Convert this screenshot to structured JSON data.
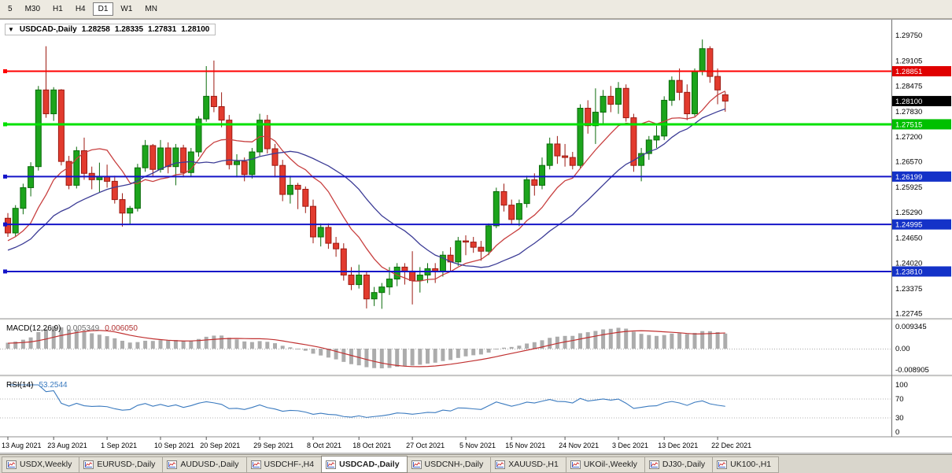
{
  "toolbar": {
    "timeframes": [
      {
        "label": "5",
        "active": false
      },
      {
        "label": "M30",
        "active": false
      },
      {
        "label": "H1",
        "active": false
      },
      {
        "label": "H4",
        "active": false
      },
      {
        "label": "D1",
        "active": true
      },
      {
        "label": "W1",
        "active": false
      },
      {
        "label": "MN",
        "active": false
      }
    ]
  },
  "chart_data": {
    "type": "candlestick",
    "symbol": "USDCAD-",
    "timeframe": "Daily",
    "header": {
      "collapse_icon": "▼",
      "label": "USDCAD-,Daily",
      "open": "1.28258",
      "high": "1.28335",
      "low": "1.27831",
      "close": "1.28100"
    },
    "price_axis_labels": [
      "1.29750",
      "1.29105",
      "1.28475",
      "1.27830",
      "1.27200",
      "1.26570",
      "1.25925",
      "1.25290",
      "1.24650",
      "1.24020",
      "1.23375",
      "1.22745"
    ],
    "current_price": {
      "value": 1.281,
      "label": "1.28100",
      "badge_color": "#000000"
    },
    "horizontal_lines": [
      {
        "price": 1.28851,
        "label": "1.28851",
        "color": "#FF0000",
        "badge_color": "#E00000",
        "width": 2
      },
      {
        "price": 1.27515,
        "label": "1.27515",
        "color": "#00E100",
        "badge_color": "#00C000",
        "width": 3
      },
      {
        "price": 1.26199,
        "label": "1.26199",
        "color": "#1414C8",
        "badge_color": "#1432C8",
        "width": 2
      },
      {
        "price": 1.24995,
        "label": "1.24995",
        "color": "#1414C8",
        "badge_color": "#1432C8",
        "width": 2
      },
      {
        "price": 1.2381,
        "label": "1.23810",
        "color": "#1414C8",
        "badge_color": "#1432C8",
        "width": 2
      }
    ],
    "moving_averages": [
      {
        "period": 10,
        "color": "#C84040"
      },
      {
        "period": 21,
        "color": "#3C3C96"
      }
    ],
    "x_axis_labels": [
      {
        "i": 0,
        "label": "13 Aug 2021"
      },
      {
        "i": 6,
        "label": "23 Aug 2021"
      },
      {
        "i": 13,
        "label": "1 Sep 2021"
      },
      {
        "i": 20,
        "label": "10 Sep 2021"
      },
      {
        "i": 26,
        "label": "20 Sep 2021"
      },
      {
        "i": 33,
        "label": "29 Sep 2021"
      },
      {
        "i": 40,
        "label": "8 Oct 2021"
      },
      {
        "i": 46,
        "label": "18 Oct 2021"
      },
      {
        "i": 53,
        "label": "27 Oct 2021"
      },
      {
        "i": 60,
        "label": "5 Nov 2021"
      },
      {
        "i": 66,
        "label": "15 Nov 2021"
      },
      {
        "i": 73,
        "label": "24 Nov 2021"
      },
      {
        "i": 80,
        "label": "3 Dec 2021"
      },
      {
        "i": 86,
        "label": "13 Dec 2021"
      },
      {
        "i": 93,
        "label": "22 Dec 2021"
      }
    ],
    "candles": [
      [
        "2021-08-13",
        1.2515,
        1.2528,
        1.2468,
        1.2478
      ],
      [
        "2021-08-16",
        1.2478,
        1.2548,
        1.247,
        1.254
      ],
      [
        "2021-08-17",
        1.254,
        1.2602,
        1.2525,
        1.2592
      ],
      [
        "2021-08-18",
        1.2592,
        1.2656,
        1.257,
        1.2645
      ],
      [
        "2021-08-19",
        1.2645,
        1.2848,
        1.2635,
        1.2838
      ],
      [
        "2021-08-20",
        1.2838,
        1.2948,
        1.2768,
        1.2778
      ],
      [
        "2021-08-23",
        1.2778,
        1.2845,
        1.276,
        1.2838
      ],
      [
        "2021-08-24",
        1.2838,
        1.284,
        1.2648,
        1.2658
      ],
      [
        "2021-08-25",
        1.2658,
        1.2672,
        1.2588,
        1.2598
      ],
      [
        "2021-08-26",
        1.2598,
        1.2695,
        1.259,
        1.2685
      ],
      [
        "2021-08-27",
        1.2685,
        1.2718,
        1.2612,
        1.2628
      ],
      [
        "2021-08-30",
        1.2628,
        1.2645,
        1.2588,
        1.2612
      ],
      [
        "2021-08-31",
        1.2612,
        1.2655,
        1.258,
        1.262
      ],
      [
        "2021-09-01",
        1.262,
        1.265,
        1.2592,
        1.2608
      ],
      [
        "2021-09-02",
        1.2608,
        1.2622,
        1.2552,
        1.2562
      ],
      [
        "2021-09-03",
        1.2562,
        1.2578,
        1.2494,
        1.2528
      ],
      [
        "2021-09-06",
        1.2528,
        1.2546,
        1.25,
        1.254
      ],
      [
        "2021-09-07",
        1.254,
        1.2652,
        1.2532,
        1.2642
      ],
      [
        "2021-09-08",
        1.2642,
        1.2712,
        1.2632,
        1.2698
      ],
      [
        "2021-09-09",
        1.2698,
        1.2702,
        1.2622,
        1.2638
      ],
      [
        "2021-09-10",
        1.2638,
        1.2712,
        1.263,
        1.2692
      ],
      [
        "2021-09-13",
        1.2692,
        1.2706,
        1.2628,
        1.2645
      ],
      [
        "2021-09-14",
        1.2645,
        1.2702,
        1.2598,
        1.2692
      ],
      [
        "2021-09-15",
        1.2692,
        1.27,
        1.2618,
        1.263
      ],
      [
        "2021-09-16",
        1.263,
        1.2692,
        1.262,
        1.2682
      ],
      [
        "2021-09-17",
        1.2682,
        1.2772,
        1.267,
        1.2765
      ],
      [
        "2021-09-20",
        1.2765,
        1.2898,
        1.2758,
        1.2822
      ],
      [
        "2021-09-21",
        1.2822,
        1.2912,
        1.2782,
        1.2796
      ],
      [
        "2021-09-22",
        1.2796,
        1.2832,
        1.2744,
        1.2762
      ],
      [
        "2021-09-23",
        1.2762,
        1.2775,
        1.2638,
        1.265
      ],
      [
        "2021-09-24",
        1.265,
        1.2676,
        1.2618,
        1.2658
      ],
      [
        "2021-09-27",
        1.2658,
        1.2668,
        1.2608,
        1.2625
      ],
      [
        "2021-09-28",
        1.2625,
        1.2692,
        1.2615,
        1.2682
      ],
      [
        "2021-09-29",
        1.2682,
        1.2778,
        1.2672,
        1.2762
      ],
      [
        "2021-09-30",
        1.2762,
        1.2775,
        1.2678,
        1.269
      ],
      [
        "2021-10-01",
        1.269,
        1.2702,
        1.2618,
        1.2648
      ],
      [
        "2021-10-04",
        1.2648,
        1.2662,
        1.2558,
        1.2575
      ],
      [
        "2021-10-05",
        1.2575,
        1.2622,
        1.2552,
        1.2598
      ],
      [
        "2021-10-06",
        1.2598,
        1.2604,
        1.2538,
        1.2588
      ],
      [
        "2021-10-07",
        1.2588,
        1.2595,
        1.2528,
        1.2545
      ],
      [
        "2021-10-08",
        1.2545,
        1.2562,
        1.2452,
        1.2468
      ],
      [
        "2021-10-11",
        1.2468,
        1.2502,
        1.2444,
        1.2492
      ],
      [
        "2021-10-12",
        1.2492,
        1.2502,
        1.2438,
        1.2452
      ],
      [
        "2021-10-13",
        1.2452,
        1.2468,
        1.2418,
        1.2438
      ],
      [
        "2021-10-14",
        1.2438,
        1.2452,
        1.2358,
        1.2372
      ],
      [
        "2021-10-15",
        1.2372,
        1.2392,
        1.2334,
        1.2348
      ],
      [
        "2021-10-18",
        1.2348,
        1.2398,
        1.2338,
        1.2372
      ],
      [
        "2021-10-19",
        1.2372,
        1.2382,
        1.2288,
        1.2312
      ],
      [
        "2021-10-20",
        1.2312,
        1.2342,
        1.2294,
        1.2328
      ],
      [
        "2021-10-21",
        1.2328,
        1.2352,
        1.2287,
        1.2342
      ],
      [
        "2021-10-22",
        1.2342,
        1.2392,
        1.2322,
        1.2362
      ],
      [
        "2021-10-25",
        1.2362,
        1.2402,
        1.2344,
        1.2392
      ],
      [
        "2021-10-26",
        1.2392,
        1.2402,
        1.2348,
        1.2382
      ],
      [
        "2021-10-27",
        1.2382,
        1.2432,
        1.2298,
        1.2358
      ],
      [
        "2021-10-28",
        1.2358,
        1.2392,
        1.2328,
        1.2372
      ],
      [
        "2021-10-29",
        1.2372,
        1.2402,
        1.2352,
        1.2388
      ],
      [
        "2021-11-01",
        1.2388,
        1.2402,
        1.2352,
        1.2382
      ],
      [
        "2021-11-02",
        1.2382,
        1.2432,
        1.2368,
        1.2422
      ],
      [
        "2021-11-03",
        1.2422,
        1.2442,
        1.2382,
        1.2405
      ],
      [
        "2021-11-04",
        1.2405,
        1.2468,
        1.2395,
        1.2458
      ],
      [
        "2021-11-05",
        1.2458,
        1.2472,
        1.2422,
        1.2455
      ],
      [
        "2021-11-08",
        1.2455,
        1.2468,
        1.2428,
        1.2442
      ],
      [
        "2021-11-09",
        1.2442,
        1.2458,
        1.2408,
        1.2432
      ],
      [
        "2021-11-10",
        1.2432,
        1.2502,
        1.2422,
        1.2496
      ],
      [
        "2021-11-11",
        1.2496,
        1.2592,
        1.249,
        1.2582
      ],
      [
        "2021-11-12",
        1.2582,
        1.2602,
        1.2532,
        1.2548
      ],
      [
        "2021-11-15",
        1.2548,
        1.2562,
        1.2498,
        1.2512
      ],
      [
        "2021-11-16",
        1.2512,
        1.2562,
        1.2495,
        1.2552
      ],
      [
        "2021-11-17",
        1.2552,
        1.2622,
        1.2542,
        1.2612
      ],
      [
        "2021-11-18",
        1.2612,
        1.2628,
        1.2572,
        1.2598
      ],
      [
        "2021-11-19",
        1.2598,
        1.2668,
        1.2588,
        1.2648
      ],
      [
        "2021-11-22",
        1.2648,
        1.2718,
        1.2638,
        1.2702
      ],
      [
        "2021-11-23",
        1.2702,
        1.2722,
        1.2652,
        1.2672
      ],
      [
        "2021-11-24",
        1.2672,
        1.2702,
        1.2645,
        1.2668
      ],
      [
        "2021-11-25",
        1.2668,
        1.2682,
        1.2638,
        1.2648
      ],
      [
        "2021-11-26",
        1.2648,
        1.2802,
        1.2642,
        1.2792
      ],
      [
        "2021-11-29",
        1.2792,
        1.2812,
        1.2728,
        1.2748
      ],
      [
        "2021-11-30",
        1.2748,
        1.2842,
        1.2702,
        1.2782
      ],
      [
        "2021-12-01",
        1.2782,
        1.2838,
        1.2752,
        1.2822
      ],
      [
        "2021-12-02",
        1.2822,
        1.2848,
        1.2782,
        1.2802
      ],
      [
        "2021-12-03",
        1.2802,
        1.2858,
        1.2778,
        1.2842
      ],
      [
        "2021-12-06",
        1.2842,
        1.2852,
        1.2758,
        1.2768
      ],
      [
        "2021-12-07",
        1.2768,
        1.2778,
        1.2632,
        1.2648
      ],
      [
        "2021-12-08",
        1.2648,
        1.2692,
        1.2608,
        1.2678
      ],
      [
        "2021-12-09",
        1.2678,
        1.2722,
        1.2662,
        1.2712
      ],
      [
        "2021-12-10",
        1.2712,
        1.2748,
        1.2692,
        1.2722
      ],
      [
        "2021-12-13",
        1.2722,
        1.2822,
        1.2712,
        1.2812
      ],
      [
        "2021-12-14",
        1.2812,
        1.2872,
        1.2798,
        1.2862
      ],
      [
        "2021-12-15",
        1.2862,
        1.2892,
        1.2812,
        1.2832
      ],
      [
        "2021-12-16",
        1.2832,
        1.2852,
        1.2762,
        1.2778
      ],
      [
        "2021-12-17",
        1.2778,
        1.2892,
        1.2772,
        1.2885
      ],
      [
        "2021-12-20",
        1.2885,
        1.2965,
        1.2875,
        1.2942
      ],
      [
        "2021-12-21",
        1.2942,
        1.2948,
        1.2856,
        1.2872
      ],
      [
        "2021-12-22",
        1.2872,
        1.2892,
        1.2802,
        1.2838
      ],
      [
        "2021-12-23",
        1.28258,
        1.28335,
        1.27831,
        1.281
      ]
    ],
    "indicators": {
      "macd": {
        "title": "MACD(12,26,9)",
        "fast": 12,
        "slow": 26,
        "signal": 9,
        "value_main": "0.005349",
        "value_signal": "0.006050",
        "axis_labels": [
          "0.009345",
          "0.00",
          "-0.008905"
        ],
        "hist_color": "#ACACAC",
        "signal_color": "#C03030"
      },
      "rsi": {
        "title": "RSI(14)",
        "period": 14,
        "value": "53.2544",
        "levels": [
          "100",
          "70",
          "30",
          "0"
        ],
        "dotted_levels": [
          70,
          30
        ],
        "color": "#3A7ABF"
      }
    },
    "style": {
      "bull": "#1CA41C",
      "bull_stroke": "#0B6B0B",
      "bear": "#E23B2E",
      "bear_stroke": "#9C1A12"
    }
  },
  "tabbar": {
    "tabs": [
      {
        "label": "USDX,Weekly",
        "active": false
      },
      {
        "label": "EURUSD-,Daily",
        "active": false
      },
      {
        "label": "AUDUSD-,Daily",
        "active": false
      },
      {
        "label": "USDCHF-,H4",
        "active": false
      },
      {
        "label": "USDCAD-,Daily",
        "active": true
      },
      {
        "label": "USDCNH-,Daily",
        "active": false
      },
      {
        "label": "XAUUSD-,H1",
        "active": false
      },
      {
        "label": "UKOil-,Weekly",
        "active": false
      },
      {
        "label": "DJ30-,Daily",
        "active": false
      },
      {
        "label": "UK100-,H1",
        "active": false
      }
    ]
  }
}
